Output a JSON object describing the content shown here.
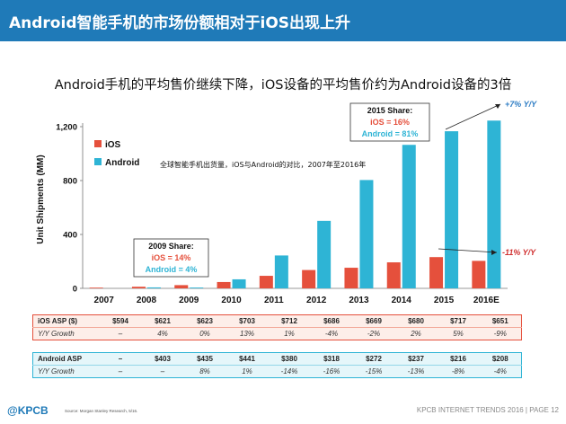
{
  "header": {
    "title": "Android智能手机的市场份额相对于iOS出现上升"
  },
  "subtitle": "Android手机的平均售价继续下降，iOS设备的平均售价约为Android设备的3倍",
  "colors": {
    "ios": "#e5503c",
    "android": "#2eb4d5",
    "header_bg": "#1f7ab8",
    "annotation": "#2e7dc4",
    "negative": "#d03030"
  },
  "chart_data": {
    "type": "bar",
    "categories": [
      "2007",
      "2008",
      "2009",
      "2010",
      "2011",
      "2012",
      "2013",
      "2014",
      "2015",
      "2016E"
    ],
    "series": [
      {
        "name": "iOS",
        "values": [
          3,
          12,
          24,
          47,
          93,
          136,
          153,
          193,
          232,
          204
        ]
      },
      {
        "name": "Android",
        "values": [
          0,
          7,
          6,
          67,
          244,
          501,
          804,
          1065,
          1166,
          1245
        ]
      }
    ],
    "ylabel": "Unit Shipments (MM)",
    "ylim": [
      0,
      1200
    ],
    "yticks": [
      "0",
      "400",
      "800",
      "1,200"
    ],
    "legend_position": "top-left",
    "inner_title": "全球智能手机出货量，iOS与Android的对比，2007年至2016年",
    "share_2009": {
      "title": "2009 Share:",
      "ios": "iOS = 14%",
      "android": "Android = 4%"
    },
    "share_2015": {
      "title": "2015 Share:",
      "ios": "iOS = 16%",
      "android": "Android = 81%"
    },
    "annot_android": "+7% Y/Y",
    "annot_ios": "-11% Y/Y"
  },
  "table_ios": {
    "row1_label": "iOS ASP ($)",
    "row1": [
      "$594",
      "$621",
      "$623",
      "$703",
      "$712",
      "$686",
      "$669",
      "$680",
      "$717",
      "$651"
    ],
    "row2_label": "Y/Y Growth",
    "row2": [
      "–",
      "4%",
      "0%",
      "13%",
      "1%",
      "-4%",
      "-2%",
      "2%",
      "5%",
      "-9%"
    ]
  },
  "table_android": {
    "row1_label": "Android ASP",
    "row1": [
      "–",
      "$403",
      "$435",
      "$441",
      "$380",
      "$318",
      "$272",
      "$237",
      "$216",
      "$208"
    ],
    "row2_label": "Y/Y Growth",
    "row2": [
      "–",
      "–",
      "8%",
      "1%",
      "-14%",
      "-16%",
      "-15%",
      "-13%",
      "-8%",
      "-4%"
    ]
  },
  "footer": {
    "brand": "@KPCB",
    "source": "Source: Morgan Stanley Research, 5/16.",
    "page": "KPCB INTERNET TRENDS 2016  |  PAGE 12"
  }
}
